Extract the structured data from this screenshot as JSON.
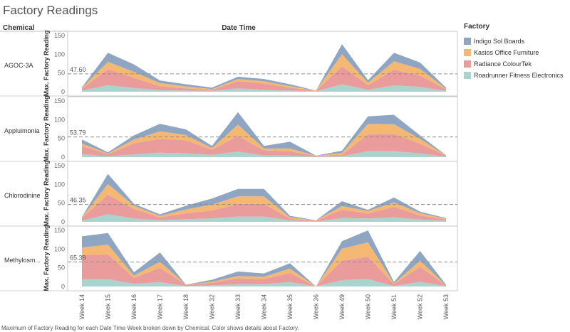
{
  "page": {
    "title": "Factory Readings",
    "row_header": "Chemical",
    "column_header": "Date Time",
    "footer": "Maximum of  Factory Reading for each Date Time Week broken down by Chemical.  Color shows details about Factory."
  },
  "legend": {
    "title": "Factory",
    "items": [
      {
        "label": "Indigo Sol Boards",
        "color": "#8ea6c4"
      },
      {
        "label": "Kasios Office Furniture",
        "color": "#f5b872"
      },
      {
        "label": "Radiance ColourTek",
        "color": "#ea9c9d"
      },
      {
        "label": "Roadrunner Fitness Electronics",
        "color": "#a8d4cd"
      }
    ]
  },
  "chart_data": {
    "type": "area",
    "stacked": true,
    "categories": [
      "Week 14",
      "Week 15",
      "Week 16",
      "Week 17",
      "Week 18",
      "Week 32",
      "Week 33",
      "Week 34",
      "Week 35",
      "Week 36",
      "Week 49",
      "Week 50",
      "Week 51",
      "Week 52",
      "Week 53"
    ],
    "series_names": [
      "Roadrunner Fitness Electronics",
      "Radiance ColourTek",
      "Kasios Office Furniture",
      "Indigo Sol Boards"
    ],
    "y_axis_label": "Max. Factory Reading",
    "y_range": [
      0,
      150
    ],
    "y_ticks": [
      0,
      50,
      100,
      150
    ],
    "reference_line": "average",
    "panels": [
      {
        "chemical": "AGOC-3A",
        "reference_value": "47.60",
        "series": [
          {
            "name": "Roadrunner Fitness Electronics",
            "values": [
              3,
              17,
              10,
              4,
              3,
              2,
              9,
              5,
              3,
              1,
              20,
              5,
              17,
              13,
              2
            ]
          },
          {
            "name": "Radiance ColourTek",
            "values": [
              5,
              43,
              27,
              11,
              6,
              3,
              19,
              17,
              8,
              1,
              48,
              12,
              42,
              30,
              4
            ]
          },
          {
            "name": "Kasios Office Furniture",
            "values": [
              2,
              20,
              16,
              8,
              5,
              2,
              6,
              6,
              4,
              1,
              32,
              7,
              22,
              18,
              2
            ]
          },
          {
            "name": "Indigo Sol Boards",
            "values": [
              2,
              24,
              20,
              7,
              6,
              4,
              6,
              6,
              5,
              0,
              27,
              7,
              23,
              17,
              3
            ]
          }
        ]
      },
      {
        "chemical": "Appluimonia",
        "reference_value": "53.79",
        "series": [
          {
            "name": "Roadrunner Fitness Electronics",
            "values": [
              8,
              2,
              7,
              12,
              10,
              6,
              15,
              4,
              4,
              1,
              2,
              16,
              16,
              10,
              1
            ]
          },
          {
            "name": "Radiance ColourTek",
            "values": [
              22,
              6,
              30,
              37,
              35,
              14,
              42,
              14,
              12,
              2,
              4,
              45,
              46,
              26,
              3
            ]
          },
          {
            "name": "Kasios Office Furniture",
            "values": [
              6,
              2,
              10,
              20,
              14,
              4,
              30,
              5,
              7,
              1,
              5,
              28,
              26,
              13,
              0
            ]
          },
          {
            "name": "Indigo Sol Boards",
            "values": [
              11,
              3,
              11,
              20,
              15,
              6,
              33,
              7,
              18,
              0,
              6,
              20,
              25,
              9,
              1
            ]
          }
        ]
      },
      {
        "chemical": "Chlorodinine",
        "reference_value": "46.35",
        "series": [
          {
            "name": "Roadrunner Fitness Electronics",
            "values": [
              3,
              20,
              9,
              4,
              7,
              9,
              14,
              14,
              4,
              1,
              10,
              9,
              12,
              6,
              3
            ]
          },
          {
            "name": "Radiance ColourTek",
            "values": [
              7,
              53,
              25,
              8,
              16,
              21,
              34,
              34,
              4,
              2,
              22,
              13,
              28,
              11,
              3
            ]
          },
          {
            "name": "Kasios Office Furniture",
            "values": [
              2,
              28,
              9,
              4,
              10,
              16,
              20,
              20,
              4,
              1,
              10,
              7,
              12,
              6,
              2
            ]
          },
          {
            "name": "Indigo Sol Boards",
            "values": [
              1,
              27,
              5,
              4,
              10,
              16,
              20,
              20,
              4,
              0,
              13,
              3,
              13,
              4,
              2
            ]
          }
        ]
      },
      {
        "chemical": "Methylosm...",
        "reference_value": "65.39",
        "series": [
          {
            "name": "Roadrunner Fitness Electronics",
            "values": [
              20,
              20,
              7,
              12,
              1,
              3,
              6,
              6,
              12,
              0,
              17,
              20,
              1,
              13,
              1
            ]
          },
          {
            "name": "Radiance ColourTek",
            "values": [
              64,
              66,
              16,
              38,
              4,
              7,
              16,
              14,
              24,
              0,
              52,
              60,
              5,
              40,
              1
            ]
          },
          {
            "name": "Kasios Office Furniture",
            "values": [
              20,
              26,
              6,
              16,
              0,
              3,
              6,
              6,
              12,
              0,
              32,
              38,
              2,
              16,
              1
            ]
          },
          {
            "name": "Indigo Sol Boards",
            "values": [
              30,
              31,
              9,
              25,
              0,
              5,
              12,
              9,
              14,
              0,
              20,
              32,
              4,
              26,
              2
            ]
          }
        ]
      }
    ]
  }
}
